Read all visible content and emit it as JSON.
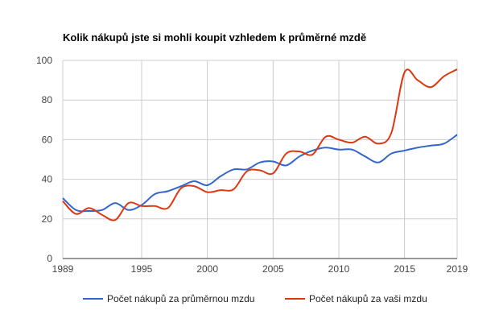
{
  "chart_data": {
    "type": "line",
    "title": "Kolik nákupů jste si mohli koupit vzhledem k průměrné mzdě",
    "xlabel": "",
    "ylabel": "",
    "xlim": [
      1989,
      2019
    ],
    "ylim": [
      0,
      100
    ],
    "x_ticks": [
      1989,
      1995,
      2000,
      2005,
      2010,
      2015,
      2019
    ],
    "y_ticks": [
      0,
      20,
      40,
      60,
      80,
      100
    ],
    "grid": true,
    "legend_position": "bottom",
    "x": [
      1989,
      1990,
      1991,
      1992,
      1993,
      1994,
      1995,
      1996,
      1997,
      1998,
      1999,
      2000,
      2001,
      2002,
      2003,
      2004,
      2005,
      2006,
      2007,
      2008,
      2009,
      2010,
      2011,
      2012,
      2013,
      2014,
      2015,
      2016,
      2017,
      2018,
      2019
    ],
    "series": [
      {
        "name": "Počet nákupů za průměrnou mzdu",
        "color": "#3366cc",
        "values": [
          30.5,
          24.5,
          24.0,
          24.5,
          28.0,
          24.5,
          27.0,
          32.5,
          34.0,
          36.5,
          39.0,
          37.0,
          41.5,
          45.0,
          45.0,
          48.5,
          49.0,
          47.0,
          51.5,
          54.5,
          56.0,
          55.0,
          55.0,
          51.5,
          48.5,
          53.0,
          54.5,
          56.0,
          57.0,
          58.0,
          62.5
        ]
      },
      {
        "name": "Počet nákupů za vaši mzdu",
        "color": "#dc3912",
        "values": [
          29.0,
          22.5,
          25.5,
          22.0,
          19.5,
          28.0,
          26.5,
          26.5,
          25.5,
          35.5,
          36.5,
          33.5,
          34.5,
          35.0,
          44.0,
          44.5,
          43.0,
          53.0,
          54.0,
          52.5,
          61.5,
          60.0,
          58.5,
          61.5,
          58.0,
          63.5,
          94.0,
          90.0,
          86.5,
          92.0,
          95.5
        ]
      }
    ]
  }
}
